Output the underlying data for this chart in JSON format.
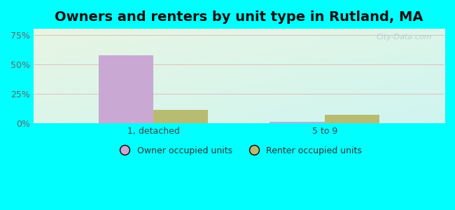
{
  "title": "Owners and renters by unit type in Rutland, MA",
  "categories": [
    "1, detached",
    "5 to 9"
  ],
  "owner_values": [
    57.5,
    1.5
  ],
  "renter_values": [
    11.5,
    7.5
  ],
  "owner_color": "#c9a8d4",
  "renter_color": "#b8bc72",
  "yticks": [
    0,
    25,
    50,
    75
  ],
  "ytick_labels": [
    "0%",
    "25%",
    "50%",
    "75%"
  ],
  "ylim": [
    0,
    80
  ],
  "bar_width": 0.32,
  "outer_bg": "#00ffff",
  "title_fontsize": 14,
  "legend_labels": [
    "Owner occupied units",
    "Renter occupied units"
  ],
  "watermark": "City-Data.com",
  "bg_top_left": "#e8f5e3",
  "bg_bottom_right": "#cff5f0"
}
